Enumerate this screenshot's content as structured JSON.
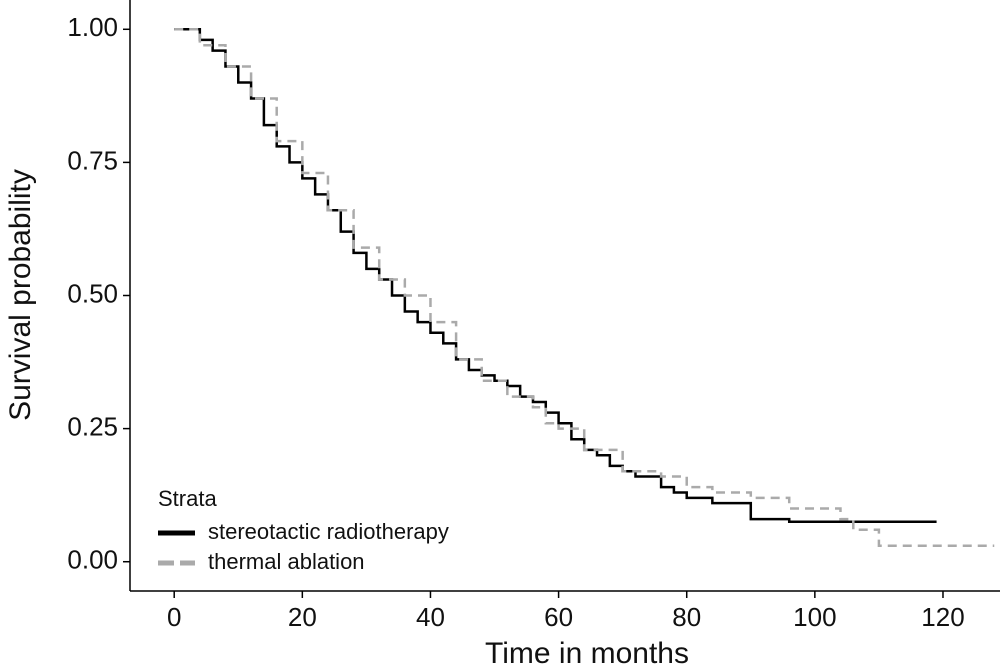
{
  "chart_data": {
    "type": "step",
    "title": null,
    "xlabel": "Time in months",
    "ylabel": "Survival probability",
    "xlim": [
      -6.9,
      128.9
    ],
    "ylim": [
      -0.055,
      1.055
    ],
    "xticks": [
      0,
      20,
      40,
      60,
      80,
      100,
      120
    ],
    "yticks": [
      {
        "value": 0,
        "label": "0.00"
      },
      {
        "value": 0.25,
        "label": "0.25"
      },
      {
        "value": 0.5,
        "label": "0.50"
      },
      {
        "value": 0.75,
        "label": "0.75"
      },
      {
        "value": 1,
        "label": "1.00"
      }
    ],
    "legend_title": "Strata",
    "legend": "lower-left",
    "series": [
      {
        "name": "stereotactic radiotherapy",
        "color": "#000000",
        "dash": false,
        "x": [
          0,
          2,
          4,
          6,
          8,
          10,
          12,
          14,
          16,
          18,
          20,
          22,
          24,
          26,
          28,
          30,
          32,
          34,
          36,
          38,
          40,
          42,
          44,
          46,
          48,
          50,
          52,
          54,
          56,
          58,
          60,
          62,
          64,
          66,
          68,
          70,
          72,
          74,
          76,
          78,
          80,
          84,
          86,
          90,
          96,
          119
        ],
        "values": [
          1.0,
          1.0,
          0.98,
          0.96,
          0.93,
          0.9,
          0.87,
          0.82,
          0.78,
          0.75,
          0.72,
          0.69,
          0.66,
          0.62,
          0.58,
          0.55,
          0.53,
          0.5,
          0.47,
          0.45,
          0.43,
          0.41,
          0.38,
          0.36,
          0.35,
          0.34,
          0.33,
          0.31,
          0.3,
          0.28,
          0.26,
          0.23,
          0.21,
          0.2,
          0.18,
          0.17,
          0.16,
          0.16,
          0.14,
          0.13,
          0.12,
          0.11,
          0.11,
          0.08,
          0.075,
          0.075
        ]
      },
      {
        "name": "thermal ablation",
        "color": "#aaaaaa",
        "dash": true,
        "x": [
          0,
          4,
          8,
          12,
          16,
          20,
          24,
          28,
          32,
          36,
          40,
          44,
          48,
          52,
          56,
          58,
          60,
          64,
          70,
          76,
          80,
          84,
          90,
          96,
          104,
          106,
          110,
          128
        ],
        "values": [
          1.0,
          0.97,
          0.93,
          0.87,
          0.79,
          0.73,
          0.66,
          0.59,
          0.53,
          0.5,
          0.45,
          0.38,
          0.34,
          0.31,
          0.29,
          0.26,
          0.25,
          0.21,
          0.17,
          0.16,
          0.14,
          0.13,
          0.12,
          0.1,
          0.08,
          0.06,
          0.03,
          0.03
        ]
      }
    ]
  }
}
